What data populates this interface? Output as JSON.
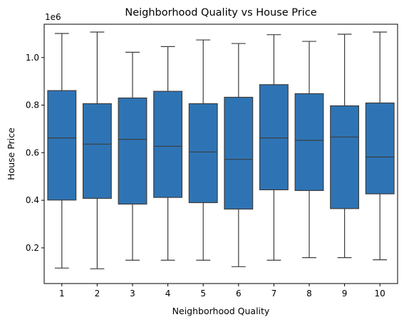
{
  "chart_data": {
    "type": "box",
    "title": "Neighborhood Quality vs House Price",
    "xlabel": "Neighborhood Quality",
    "ylabel": "House Price",
    "y_offset_label": "1e6",
    "categories": [
      "1",
      "2",
      "3",
      "4",
      "5",
      "6",
      "7",
      "8",
      "9",
      "10"
    ],
    "ylim": [
      0.05,
      1.14
    ],
    "y_ticks": [
      0.2,
      0.4,
      0.6,
      0.8,
      1.0
    ],
    "y_tick_labels": [
      "0.2",
      "0.4",
      "0.6",
      "0.8",
      "1.0"
    ],
    "box_color": "#2e74b5",
    "boxes": [
      {
        "min": 0.115,
        "q1": 0.401,
        "median": 0.662,
        "q3": 0.861,
        "max": 1.101
      },
      {
        "min": 0.112,
        "q1": 0.408,
        "median": 0.636,
        "q3": 0.806,
        "max": 1.107
      },
      {
        "min": 0.148,
        "q1": 0.384,
        "median": 0.656,
        "q3": 0.83,
        "max": 1.022
      },
      {
        "min": 0.148,
        "q1": 0.412,
        "median": 0.627,
        "q3": 0.858,
        "max": 1.046
      },
      {
        "min": 0.148,
        "q1": 0.39,
        "median": 0.603,
        "q3": 0.806,
        "max": 1.074
      },
      {
        "min": 0.121,
        "q1": 0.363,
        "median": 0.572,
        "q3": 0.833,
        "max": 1.059
      },
      {
        "min": 0.148,
        "q1": 0.444,
        "median": 0.662,
        "q3": 0.886,
        "max": 1.096
      },
      {
        "min": 0.159,
        "q1": 0.441,
        "median": 0.652,
        "q3": 0.848,
        "max": 1.068
      },
      {
        "min": 0.159,
        "q1": 0.365,
        "median": 0.666,
        "q3": 0.797,
        "max": 1.098
      },
      {
        "min": 0.15,
        "q1": 0.427,
        "median": 0.582,
        "q3": 0.809,
        "max": 1.107
      }
    ],
    "grid": false,
    "legend": "none"
  }
}
